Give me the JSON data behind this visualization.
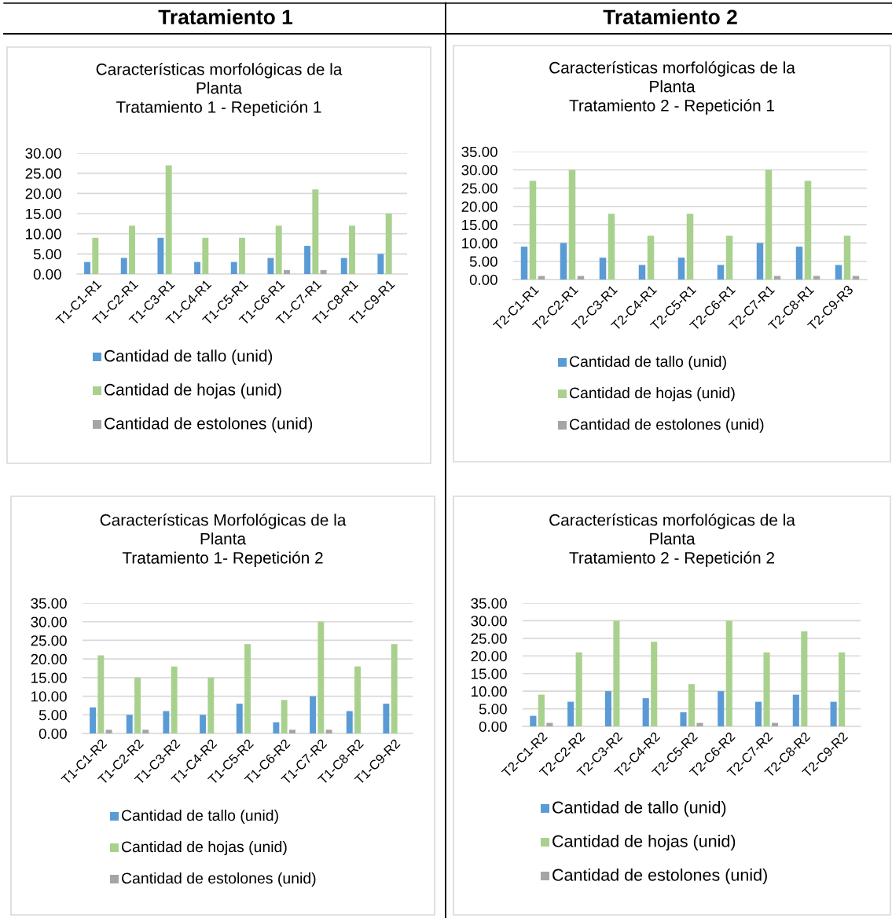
{
  "chart_data": [
    {
      "type": "bar",
      "title": "Características morfológicas de la\nPlanta\nTratamiento 1 - Repetición 1",
      "annotations": [
        "Tratamiento 1"
      ],
      "categories": [
        "T1-C1-R1",
        "T1-C2-R1",
        "T1-C3-R1",
        "T1-C4-R1",
        "T1-C5-R1",
        "T1-C6-R1",
        "T1-C7-R1",
        "T1-C8-R1",
        "T1-C9-R1"
      ],
      "series": [
        {
          "name": "Cantidad de tallo (unid)",
          "color": "#5b9bd5",
          "values": [
            3,
            4,
            9,
            3,
            3,
            4,
            7,
            4,
            5
          ]
        },
        {
          "name": "Cantidad de hojas (unid)",
          "color": "#a9d18e",
          "values": [
            9,
            12,
            27,
            9,
            9,
            12,
            21,
            12,
            15
          ]
        },
        {
          "name": "Cantidad de estolones (unid)",
          "color": "#a5a5a5",
          "values": [
            0,
            0,
            0,
            0,
            0,
            1,
            1,
            0,
            0
          ]
        }
      ],
      "ylim": [
        0,
        30
      ],
      "yticks": [
        {
          "value": 0,
          "label": "0.00"
        },
        {
          "value": 5,
          "label": "5.00"
        },
        {
          "value": 10,
          "label": "10.00"
        },
        {
          "value": 15,
          "label": "15.00"
        },
        {
          "value": 20,
          "label": "20.00"
        },
        {
          "value": 25,
          "label": "25.00"
        },
        {
          "value": 30,
          "label": "30.00"
        }
      ],
      "grid": "y",
      "legend": "bottom"
    },
    {
      "type": "bar",
      "title": "Características morfológicas de la\nPlanta\nTratamiento 2 - Repetición 1",
      "annotations": [
        "Tratamiento 2"
      ],
      "categories": [
        "T2-C1-R1",
        "T2-C2-R1",
        "T2-C3-R1",
        "T2-C4-R1",
        "T2-C5-R1",
        "T2-C6-R1",
        "T2-C7-R1",
        "T2-C8-R1",
        "T2-C9-R3"
      ],
      "series": [
        {
          "name": "Cantidad de tallo (unid)",
          "color": "#5b9bd5",
          "values": [
            9,
            10,
            6,
            4,
            6,
            4,
            10,
            9,
            4
          ]
        },
        {
          "name": "Cantidad de hojas (unid)",
          "color": "#a9d18e",
          "values": [
            27,
            30,
            18,
            12,
            18,
            12,
            30,
            27,
            12
          ]
        },
        {
          "name": "Cantidad de estolones (unid)",
          "color": "#a5a5a5",
          "values": [
            1,
            1,
            0,
            0,
            0,
            0,
            1,
            1,
            1
          ]
        }
      ],
      "ylim": [
        0,
        35
      ],
      "yticks": [
        {
          "value": 0,
          "label": "0.00"
        },
        {
          "value": 5,
          "label": "5.00"
        },
        {
          "value": 10,
          "label": "10.00"
        },
        {
          "value": 15,
          "label": "15.00"
        },
        {
          "value": 20,
          "label": "20.00"
        },
        {
          "value": 25,
          "label": "25.00"
        },
        {
          "value": 30,
          "label": "30.00"
        },
        {
          "value": 35,
          "label": "35.00"
        }
      ],
      "grid": "y",
      "legend": "bottom"
    },
    {
      "type": "bar",
      "title": "Características Morfológicas de la\nPlanta\nTratamiento 1- Repetición 2",
      "categories": [
        "T1-C1-R2",
        "T1-C2-R2",
        "T1-C3-R2",
        "T1-C4-R2",
        "T1-C5-R2",
        "T1-C6-R2",
        "T1-C7-R2",
        "T1-C8-R2",
        "T1-C9-R2"
      ],
      "series": [
        {
          "name": "Cantidad de tallo (unid)",
          "color": "#5b9bd5",
          "values": [
            7,
            5,
            6,
            5,
            8,
            3,
            10,
            6,
            8
          ]
        },
        {
          "name": "Cantidad de hojas (unid)",
          "color": "#a9d18e",
          "values": [
            21,
            15,
            18,
            15,
            24,
            9,
            30,
            18,
            24
          ]
        },
        {
          "name": "Cantidad de estolones (unid)",
          "color": "#a5a5a5",
          "values": [
            1,
            1,
            0,
            0,
            0,
            1,
            1,
            0,
            0
          ]
        }
      ],
      "ylim": [
        0,
        35
      ],
      "yticks": [
        {
          "value": 0,
          "label": "0.00"
        },
        {
          "value": 5,
          "label": "5.00"
        },
        {
          "value": 10,
          "label": "10.00"
        },
        {
          "value": 15,
          "label": "15.00"
        },
        {
          "value": 20,
          "label": "20.00"
        },
        {
          "value": 25,
          "label": "25.00"
        },
        {
          "value": 30,
          "label": "30.00"
        },
        {
          "value": 35,
          "label": "35.00"
        }
      ],
      "grid": "y",
      "legend": "bottom"
    },
    {
      "type": "bar",
      "title": "Características morfológicas de la\nPlanta\nTratamiento 2 - Repetición 2",
      "categories": [
        "T2-C1-R2",
        "T2-C2-R2",
        "T2-C3-R2",
        "T2-C4-R2",
        "T2-C5-R2",
        "T2-C6-R2",
        "T2-C7-R2",
        "T2-C8-R2",
        "T2-C9-R2"
      ],
      "series": [
        {
          "name": "Cantidad de tallo (unid)",
          "color": "#5b9bd5",
          "values": [
            3,
            7,
            10,
            8,
            4,
            10,
            7,
            9,
            7
          ]
        },
        {
          "name": "Cantidad de hojas (unid)",
          "color": "#a9d18e",
          "values": [
            9,
            21,
            30,
            24,
            12,
            30,
            21,
            27,
            21
          ]
        },
        {
          "name": "Cantidad de estolones (unid)",
          "color": "#a5a5a5",
          "values": [
            1,
            0,
            0,
            0,
            1,
            0,
            1,
            0,
            0
          ]
        }
      ],
      "ylim": [
        0,
        35
      ],
      "yticks": [
        {
          "value": 0,
          "label": "0.00"
        },
        {
          "value": 5,
          "label": "5.00"
        },
        {
          "value": 10,
          "label": "10.00"
        },
        {
          "value": 15,
          "label": "15.00"
        },
        {
          "value": 20,
          "label": "20.00"
        },
        {
          "value": 25,
          "label": "25.00"
        },
        {
          "value": 30,
          "label": "30.00"
        },
        {
          "value": 35,
          "label": "35.00"
        }
      ],
      "grid": "y",
      "legend": "bottom"
    }
  ]
}
